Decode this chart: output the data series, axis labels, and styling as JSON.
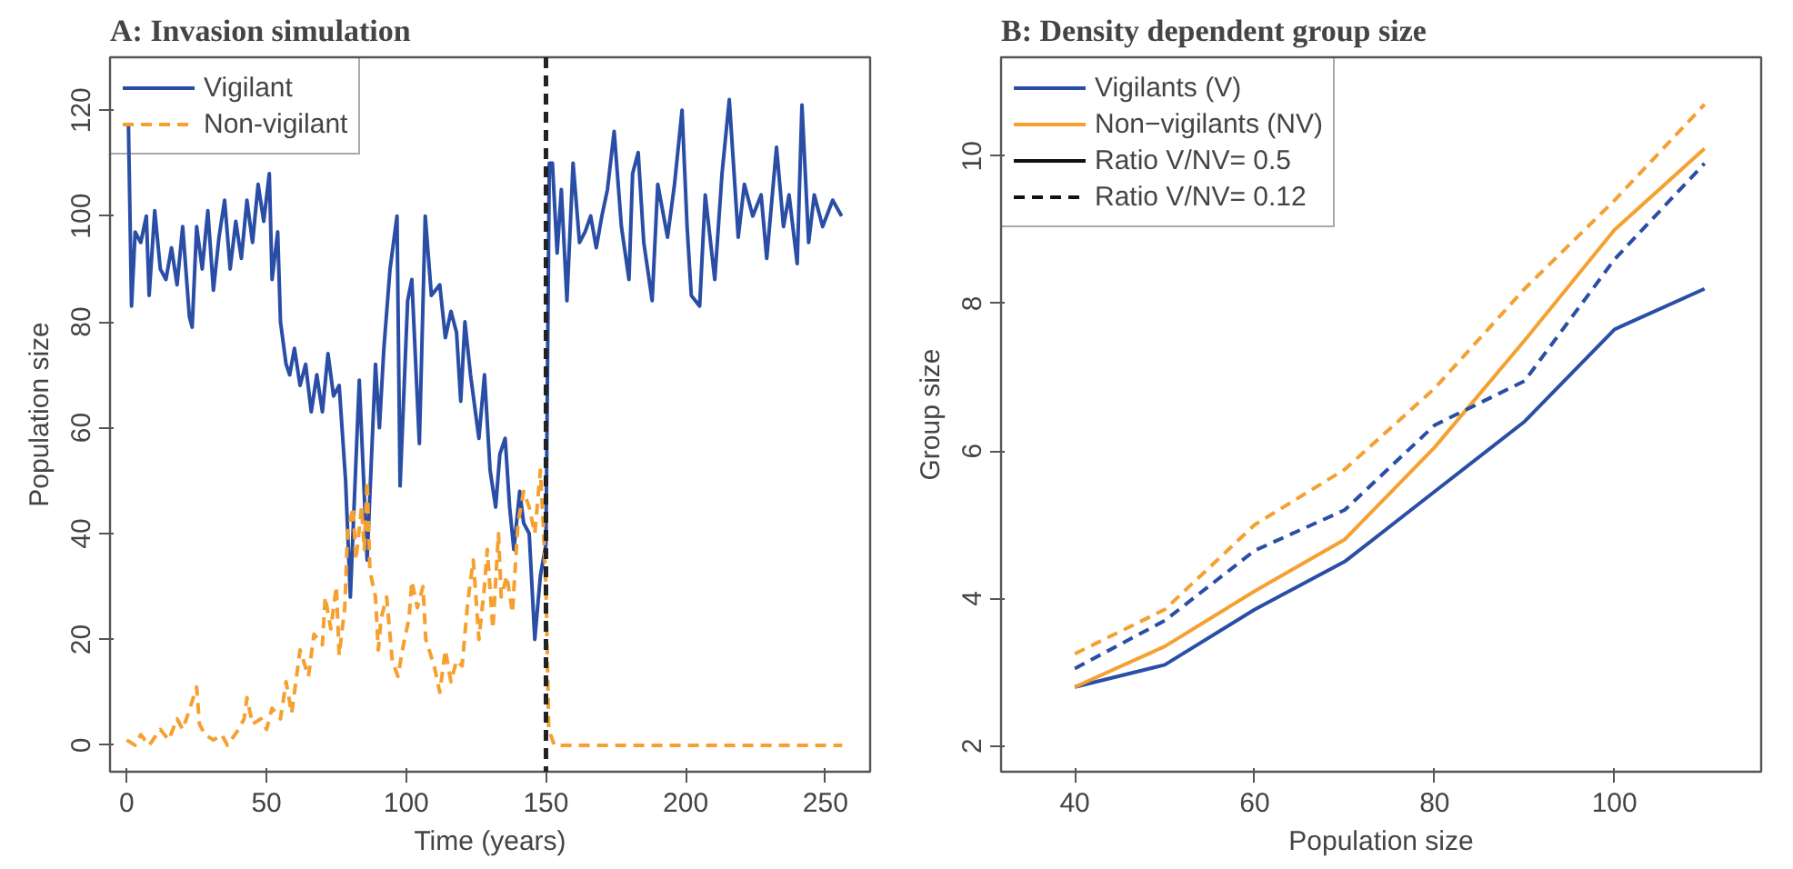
{
  "chart_data": [
    {
      "type": "line",
      "title": "A: Invasion simulation",
      "xlabel": "Time (years)",
      "ylabel": "Population size",
      "xlim": [
        -6,
        266
      ],
      "ylim": [
        -5,
        130
      ],
      "xticks": [
        0,
        50,
        100,
        150,
        200,
        250
      ],
      "yticks": [
        0,
        20,
        40,
        60,
        80,
        100,
        120
      ],
      "grid": false,
      "legend": "top left",
      "ref_lines": [
        {
          "axis": "x",
          "value": 150,
          "color": "#222222",
          "line_style": "dashed"
        }
      ],
      "series": [
        {
          "name": "Vigilant",
          "color": "#2a4ea6",
          "line_style": "solid",
          "x": [
            0.6,
            1.7,
            3,
            5,
            7,
            8,
            10,
            12,
            14,
            16,
            18,
            20,
            22.4,
            23.4,
            25,
            27,
            29,
            31,
            33,
            35,
            37,
            39,
            41,
            43,
            45,
            47,
            49,
            51,
            52,
            54,
            55,
            57,
            58.3,
            60,
            62,
            64,
            66,
            68,
            70,
            72,
            74,
            76,
            78.3,
            80,
            83.2,
            86,
            89,
            90.4,
            92,
            94.2,
            96.7,
            97.8,
            100.5,
            102,
            104.7,
            106.8,
            109,
            112,
            114,
            116,
            118,
            119.5,
            121,
            123,
            126,
            128,
            130,
            132,
            133.5,
            135.4,
            137,
            138.5,
            140.6,
            142,
            144,
            146,
            148,
            150,
            151.2,
            152.3,
            154,
            155.5,
            157.5,
            159.7,
            162,
            164,
            166,
            168,
            170,
            172,
            174.4,
            177,
            179.7,
            181,
            183,
            185,
            188,
            190,
            193.5,
            196,
            198.7,
            200.5,
            202,
            205,
            207,
            210.4,
            213,
            215.6,
            218.8,
            221,
            224,
            227,
            229,
            232.5,
            235,
            237,
            239.9,
            241.6,
            244,
            246,
            249,
            252.6,
            255.8
          ],
          "values": [
            117,
            83,
            97,
            95,
            100,
            85,
            101,
            90,
            88,
            94,
            87,
            98,
            81,
            79,
            98,
            90,
            101,
            86,
            96,
            103,
            90,
            99,
            92,
            103,
            95,
            106,
            99,
            108,
            88,
            97,
            80,
            72,
            70,
            75,
            68,
            72,
            63,
            70,
            63,
            74,
            66,
            68,
            50,
            28,
            69,
            35,
            72,
            60,
            75,
            90,
            100,
            49,
            84,
            88,
            57,
            100,
            85,
            87,
            77,
            82,
            78,
            65,
            80,
            70,
            58,
            70,
            52,
            45,
            55,
            58,
            45,
            37,
            48,
            42,
            40,
            20,
            32,
            38,
            110,
            110,
            93,
            105,
            84,
            110,
            95,
            97,
            100,
            94,
            100,
            105,
            116,
            98,
            88,
            108,
            112,
            95,
            84,
            106,
            96,
            106,
            120,
            98,
            85,
            83,
            104,
            88,
            108,
            122,
            96,
            106,
            100,
            104,
            92,
            113,
            98,
            104,
            91,
            121,
            95,
            104,
            98,
            103,
            100
          ]
        },
        {
          "name": "Non-vigilant",
          "color": "#f5a030",
          "line_style": "dashed",
          "x": [
            0,
            3,
            5,
            8,
            12,
            15,
            18,
            20,
            22,
            25,
            26,
            28,
            31,
            34,
            36,
            40,
            42,
            43,
            45,
            48,
            50,
            52,
            55,
            57,
            59,
            62,
            65,
            67,
            70,
            71,
            73,
            75,
            76,
            78,
            79,
            81,
            82,
            84,
            85,
            86,
            87,
            89,
            90,
            91,
            93,
            95,
            97,
            99,
            101,
            102,
            104,
            106,
            107,
            110,
            112,
            114,
            116,
            118,
            120,
            122,
            124,
            126,
            128,
            129,
            131,
            133,
            134,
            136,
            138,
            140,
            142,
            144,
            146,
            148,
            149,
            150,
            151,
            153,
            160,
            170,
            180,
            190,
            200,
            210,
            220,
            230,
            240,
            250,
            256
          ],
          "values": [
            1,
            0,
            2,
            0,
            3,
            1,
            5,
            3,
            6,
            11,
            4,
            2,
            1,
            2,
            0,
            3,
            5,
            9,
            4,
            5,
            3,
            7,
            5,
            12,
            6,
            18,
            13,
            21,
            19,
            28,
            22,
            30,
            17,
            26,
            40,
            45,
            35,
            45,
            37,
            50,
            33,
            28,
            18,
            24,
            28,
            16,
            13,
            19,
            24,
            31,
            26,
            30,
            20,
            15,
            10,
            18,
            12,
            16,
            15,
            27,
            35,
            20,
            30,
            37,
            22,
            40,
            28,
            32,
            25,
            42,
            48,
            45,
            40,
            52,
            42,
            30,
            3,
            0,
            0,
            0,
            0,
            0,
            0,
            0,
            0,
            0,
            0,
            0,
            0
          ]
        }
      ]
    },
    {
      "type": "line",
      "title": "B: Density dependent group size",
      "xlabel": "Population size",
      "ylabel": "Group size",
      "xlim": [
        31.8,
        116.3
      ],
      "ylim": [
        1.65,
        11.34
      ],
      "xticks": [
        40,
        60,
        80,
        100
      ],
      "yticks": [
        2,
        4,
        6,
        8,
        10
      ],
      "grid": false,
      "legend": "top left",
      "annotations": [
        "Vigilants (V)",
        "Non−vigilants (NV)",
        "Ratio V/NV= 0.5",
        "Ratio V/NV= 0.12"
      ],
      "x": [
        40,
        50,
        60,
        70,
        80,
        90,
        100,
        110
      ],
      "series": [
        {
          "color": "#2a4ea6",
          "line_style": "solid",
          "values": [
            2.8,
            3.1,
            3.85,
            4.5,
            5.45,
            6.4,
            7.65,
            8.2
          ]
        },
        {
          "color": "#f5a030",
          "line_style": "solid",
          "values": [
            2.8,
            3.35,
            4.1,
            4.8,
            6.05,
            7.5,
            9.0,
            10.1
          ]
        },
        {
          "color": "#2a4ea6",
          "line_style": "dashed",
          "values": [
            3.05,
            3.7,
            4.65,
            5.2,
            6.35,
            6.95,
            8.6,
            9.9
          ]
        },
        {
          "color": "#f5a030",
          "line_style": "dashed",
          "values": [
            3.25,
            3.85,
            5.0,
            5.75,
            6.85,
            8.2,
            9.4,
            10.7
          ]
        }
      ]
    }
  ]
}
